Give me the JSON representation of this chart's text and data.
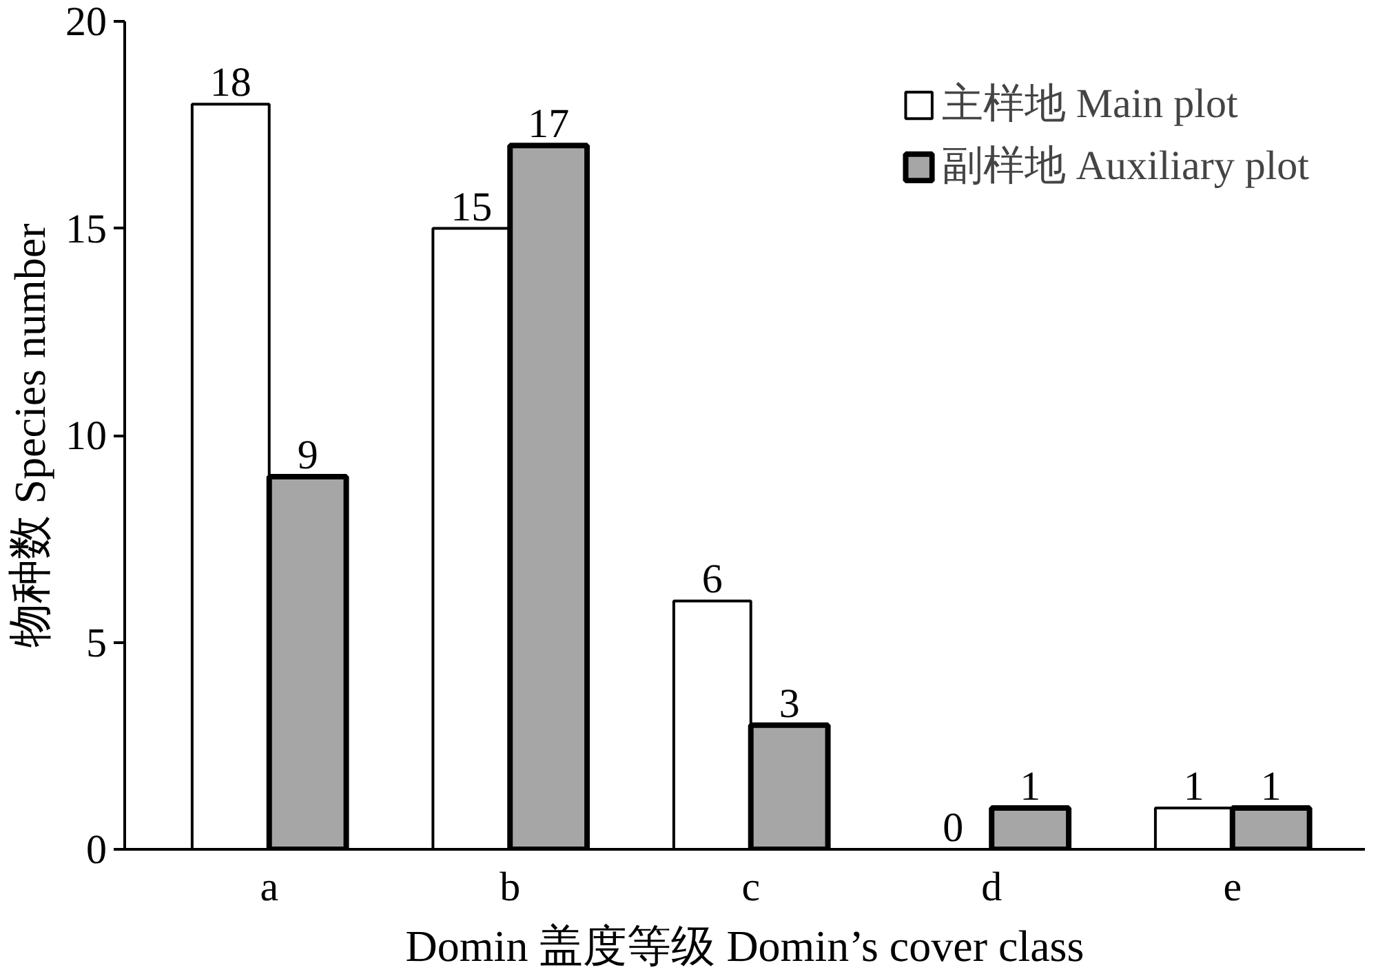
{
  "chart_data": {
    "type": "bar",
    "xlabel": "Domin 盖度等级 Domin’s cover class",
    "ylabel": "物种数 Species number",
    "categories": [
      "a",
      "b",
      "c",
      "d",
      "e"
    ],
    "series": [
      {
        "name": "主样地 Main plot",
        "color": "#ffffff",
        "values": [
          18,
          15,
          6,
          0,
          1
        ]
      },
      {
        "name": "副样地 Auxiliary plot",
        "color": "#a6a6a6",
        "values": [
          9,
          17,
          3,
          1,
          1
        ]
      }
    ],
    "ylim": [
      0,
      20
    ],
    "yticks": [
      0,
      5,
      10,
      15,
      20
    ],
    "grid": false,
    "legend": "top right",
    "data_labels": true
  }
}
